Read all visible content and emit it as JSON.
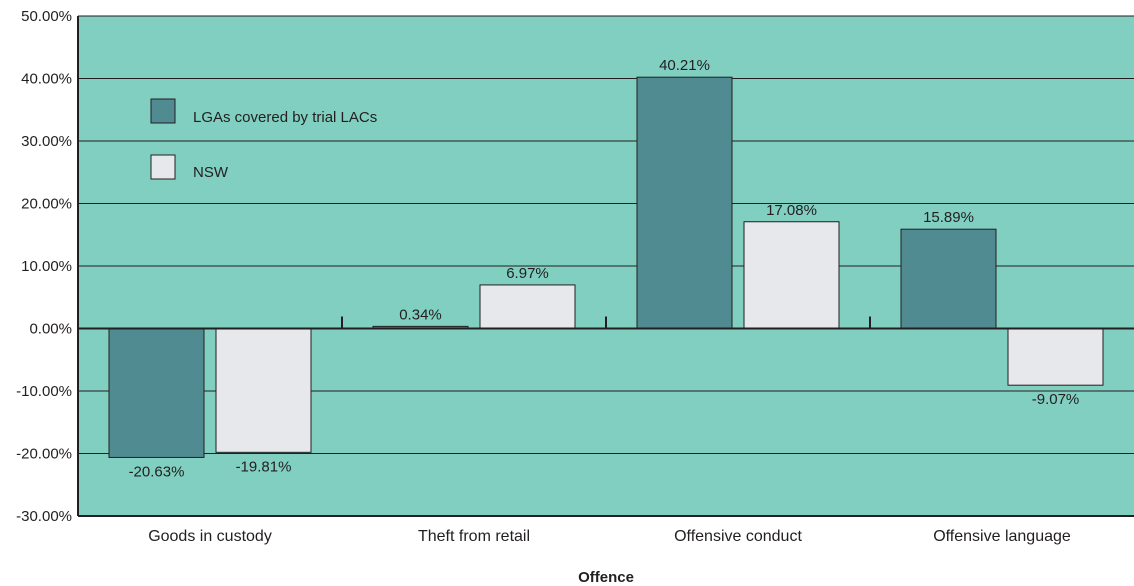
{
  "chart_data": {
    "type": "bar",
    "xlabel": "Offence",
    "ylabel": "",
    "categories": [
      "Goods in custody",
      "Theft from retail",
      "Offensive conduct",
      "Offensive language"
    ],
    "series": [
      {
        "name": "LGAs covered by trial LACs",
        "values": [
          -20.63,
          0.34,
          40.21,
          15.89
        ],
        "labels": [
          "-20.63%",
          "0.34%",
          "40.21%",
          "15.89%"
        ],
        "color": "#508b92"
      },
      {
        "name": "NSW",
        "values": [
          -19.81,
          6.97,
          17.08,
          -9.07
        ],
        "labels": [
          "-19.81%",
          "6.97%",
          "17.08%",
          "-9.07%"
        ],
        "color": "#e6e8ec"
      }
    ],
    "ylim": [
      -30,
      50
    ],
    "yticks": [
      50,
      40,
      30,
      20,
      10,
      0,
      -10,
      -20,
      -30
    ],
    "ytick_labels": [
      "50.00%",
      "40.00%",
      "30.00%",
      "20.00%",
      "10.00%",
      "0.00%",
      "-10.00%",
      "-20.00%",
      "-30.00%"
    ],
    "grid": true,
    "legend_position": "top-left",
    "colors": {
      "plot_background": "#80cfc0",
      "axis": "#231f20"
    }
  }
}
